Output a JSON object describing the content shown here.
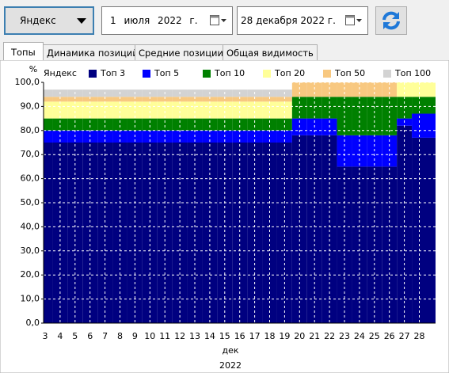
{
  "toolbar": {
    "engine": "Яндекс",
    "date_from": "1 июля 2022 г.",
    "date_to": "28 декабря 2022 г."
  },
  "tabs": [
    "Топы",
    "Динамика позиций",
    "Средние позиции",
    "Общая видимость"
  ],
  "chart_data": {
    "type": "stacked_bar",
    "y_label": "%",
    "legend_title": "Яндекс",
    "x_label": "дек",
    "x_sublabel": "2022",
    "categories": [
      "3",
      "4",
      "5",
      "6",
      "7",
      "8",
      "9",
      "10",
      "11",
      "12",
      "13",
      "14",
      "15",
      "16",
      "17",
      "18",
      "19",
      "20",
      "21",
      "22",
      "23",
      "24",
      "25",
      "26",
      "27",
      "28"
    ],
    "series": [
      {
        "name": "Топ 3",
        "color": "#000080",
        "values": [
          75,
          75,
          75,
          75,
          75,
          75,
          75,
          75,
          75,
          75,
          75,
          75,
          75,
          75,
          75,
          75,
          75,
          78,
          78,
          78,
          65,
          65,
          65,
          65,
          82,
          77
        ]
      },
      {
        "name": "Топ 5",
        "color": "#0000ff",
        "values": [
          5,
          5,
          5,
          5,
          5,
          5,
          5,
          5,
          5,
          5,
          5,
          5,
          5,
          5,
          5,
          5,
          5,
          7,
          7,
          7,
          13,
          13,
          13,
          13,
          3,
          10
        ]
      },
      {
        "name": "Топ 10",
        "color": "#008000",
        "values": [
          5,
          5,
          5,
          5,
          5,
          5,
          5,
          5,
          5,
          5,
          5,
          5,
          5,
          5,
          5,
          5,
          5,
          9,
          9,
          9,
          16,
          16,
          16,
          16,
          9,
          7
        ]
      },
      {
        "name": "Топ 20",
        "color": "#ffff99",
        "values": [
          7,
          7,
          7,
          7,
          7,
          7,
          7,
          7,
          7,
          7,
          7,
          7,
          7,
          7,
          7,
          7,
          7,
          0,
          0,
          0,
          0,
          0,
          0,
          0,
          6,
          6
        ]
      },
      {
        "name": "Топ 50",
        "color": "#f8c880",
        "values": [
          2,
          2,
          2,
          2,
          2,
          2,
          2,
          2,
          2,
          2,
          2,
          2,
          2,
          2,
          2,
          2,
          2,
          6,
          6,
          6,
          6,
          6,
          6,
          6,
          0,
          0
        ]
      },
      {
        "name": "Топ 100",
        "color": "#d3d3d3",
        "values": [
          3,
          3,
          3,
          3,
          3,
          3,
          3,
          3,
          3,
          3,
          3,
          3,
          3,
          3,
          3,
          3,
          3,
          0,
          0,
          0,
          0,
          0,
          0,
          0,
          0,
          0
        ]
      }
    ],
    "ylim": [
      0,
      100
    ],
    "yticks": [
      {
        "value": 0,
        "label": "0,0"
      },
      {
        "value": 10,
        "label": "10,0"
      },
      {
        "value": 20,
        "label": "20,0"
      },
      {
        "value": 30,
        "label": "30,0"
      },
      {
        "value": 40,
        "label": "40,0"
      },
      {
        "value": 50,
        "label": "50,0"
      },
      {
        "value": 60,
        "label": "60,0"
      },
      {
        "value": 70,
        "label": "70,0"
      },
      {
        "value": 80,
        "label": "80,0"
      },
      {
        "value": 90,
        "label": "90,0"
      },
      {
        "value": 100,
        "label": "100,0"
      }
    ],
    "grid": true,
    "legend": "top"
  }
}
